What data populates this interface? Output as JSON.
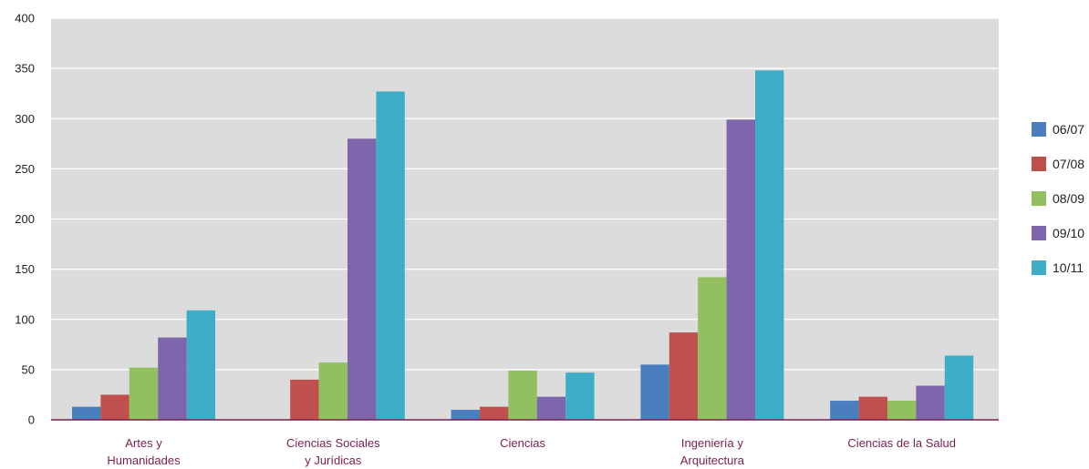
{
  "chart_data": {
    "type": "bar",
    "categories": [
      [
        "Artes y",
        "Humanidades"
      ],
      [
        "Ciencias Sociales",
        "y Jurídicas"
      ],
      [
        "Ciencias"
      ],
      [
        "Ingeniería y",
        "Arquitectura"
      ],
      [
        "Ciencias de la Salud"
      ]
    ],
    "series": [
      {
        "name": "06/07",
        "color": "#4a7ebf",
        "values": [
          13,
          0,
          10,
          55,
          19
        ]
      },
      {
        "name": "07/08",
        "color": "#c0504d",
        "values": [
          25,
          40,
          13,
          87,
          23
        ]
      },
      {
        "name": "08/09",
        "color": "#92bf5f",
        "values": [
          52,
          57,
          49,
          142,
          19
        ]
      },
      {
        "name": "09/10",
        "color": "#7d66ac",
        "values": [
          82,
          280,
          23,
          299,
          34
        ]
      },
      {
        "name": "10/11",
        "color": "#3eaec8",
        "values": [
          109,
          327,
          47,
          348,
          64
        ]
      }
    ],
    "title": "",
    "xlabel": "",
    "ylabel": "",
    "ylim": [
      0,
      400
    ],
    "yticks": [
      0,
      50,
      100,
      150,
      200,
      250,
      300,
      350,
      400
    ],
    "grid": true,
    "legend": "right",
    "plot_background": "#dcdcdc",
    "axis_color": "#7a1f4f"
  }
}
